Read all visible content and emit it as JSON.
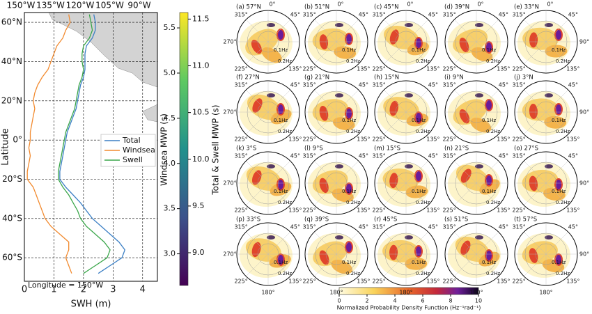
{
  "chart_data": [
    {
      "type": "line",
      "top_tick_labels": [
        "150°W",
        "135°W",
        "120°W",
        "105°W",
        "90°W"
      ],
      "xlabel": "SWH (m)",
      "ylabel": "Latitude",
      "annotation": "Longitude = 150°W",
      "xlim": [
        0,
        4.5
      ],
      "xticks": [
        0,
        1,
        2,
        3,
        4
      ],
      "ylim": [
        -72,
        65
      ],
      "yticks": [
        {
          "value": 60,
          "label": "60°N"
        },
        {
          "value": 40,
          "label": "40°N"
        },
        {
          "value": 20,
          "label": "20°N"
        },
        {
          "value": 0,
          "label": "0°"
        },
        {
          "value": -20,
          "label": "20°S"
        },
        {
          "value": -40,
          "label": "40°S"
        },
        {
          "value": -60,
          "label": "60°S"
        }
      ],
      "grid": true,
      "y": [
        64,
        60,
        56,
        52,
        48,
        44,
        40,
        36,
        32,
        28,
        24,
        20,
        16,
        12,
        8,
        4,
        0,
        -4,
        -8,
        -12,
        -16,
        -20,
        -24,
        -28,
        -32,
        -36,
        -40,
        -44,
        -48,
        -52,
        -56,
        -60,
        -64,
        -68
      ],
      "series": [
        {
          "name": "Total",
          "color": "#3b7fc4",
          "values": [
            2.35,
            2.4,
            2.4,
            2.3,
            2.1,
            2.05,
            2.05,
            2.05,
            2.0,
            1.9,
            1.85,
            1.8,
            1.75,
            1.65,
            1.55,
            1.45,
            1.4,
            1.35,
            1.3,
            1.25,
            1.2,
            1.2,
            1.4,
            1.65,
            1.9,
            2.1,
            2.3,
            2.6,
            2.9,
            3.2,
            3.4,
            3.3,
            2.9,
            2.5
          ]
        },
        {
          "name": "Windsea",
          "color": "#f28a2e",
          "values": [
            1.5,
            1.55,
            1.4,
            1.3,
            1.1,
            1.0,
            0.9,
            0.8,
            0.6,
            0.45,
            0.35,
            0.3,
            0.35,
            0.3,
            0.25,
            0.2,
            0.2,
            0.15,
            0.2,
            0.15,
            0.1,
            0.1,
            0.3,
            0.4,
            0.5,
            0.6,
            0.7,
            0.9,
            1.2,
            1.5,
            1.5,
            1.4,
            1.5,
            1.6
          ]
        },
        {
          "name": "Swell",
          "color": "#3aa64a",
          "values": [
            2.2,
            2.25,
            2.3,
            2.2,
            2.0,
            1.95,
            1.95,
            2.0,
            1.95,
            1.85,
            1.8,
            1.75,
            1.7,
            1.6,
            1.5,
            1.4,
            1.35,
            1.3,
            1.25,
            1.2,
            1.15,
            1.15,
            1.3,
            1.5,
            1.65,
            1.8,
            1.9,
            2.1,
            2.4,
            2.7,
            2.9,
            2.8,
            2.4,
            2.0
          ]
        }
      ],
      "colorbar": {
        "label_left": "Windsea MWP (s)",
        "lim_left": [
          2.65,
          5.67
        ],
        "ticks_left": [
          {
            "value": 5.5,
            "label": "5.5"
          },
          {
            "value": 5,
            "label": "5.0"
          },
          {
            "value": 4.5,
            "label": "4.5"
          },
          {
            "value": 4,
            "label": "4.0"
          },
          {
            "value": 3.5,
            "label": "3.5"
          },
          {
            "value": 3,
            "label": "3.0"
          }
        ],
        "label_right": "Total & Swell MWP (s)",
        "lim_right": [
          8.65,
          11.57
        ],
        "ticks_right": [
          {
            "value": 11.5,
            "label": "11.5"
          },
          {
            "value": 11,
            "label": "11.0"
          },
          {
            "value": 10.5,
            "label": "10.5"
          },
          {
            "value": 10,
            "label": "10.0"
          },
          {
            "value": 9.5,
            "label": "9.5"
          },
          {
            "value": 9,
            "label": "9.0"
          }
        ]
      }
    },
    {
      "type": "polar",
      "panels": [
        "(a) 57°N",
        "(b) 51°N",
        "(c) 45°N",
        "(d) 39°N",
        "(e) 33°N",
        "(f) 27°N",
        "(g) 21°N",
        "(h) 15°N",
        "(i) 9°N",
        "(j) 3°N",
        "(k) 3°S",
        "(l) 9°S",
        "(m) 15°S",
        "(n) 21°S",
        "(o) 27°S",
        "(p) 33°S",
        "(q) 39°S",
        "(r) 45°S",
        "(s) 51°S",
        "(t) 57°S"
      ],
      "direction_labels": [
        "0°",
        "45°",
        "90°",
        "135°",
        "180°",
        "225°",
        "270°",
        "315°"
      ],
      "frequency_labels": [
        "0.1Hz",
        "0.2Hz"
      ],
      "colorbar": {
        "label": "Normalized Probability Density Function (Hz⁻¹rad⁻¹)",
        "lim": [
          0,
          10
        ],
        "ticks": [
          0,
          2,
          4,
          6,
          8,
          10
        ]
      }
    }
  ]
}
